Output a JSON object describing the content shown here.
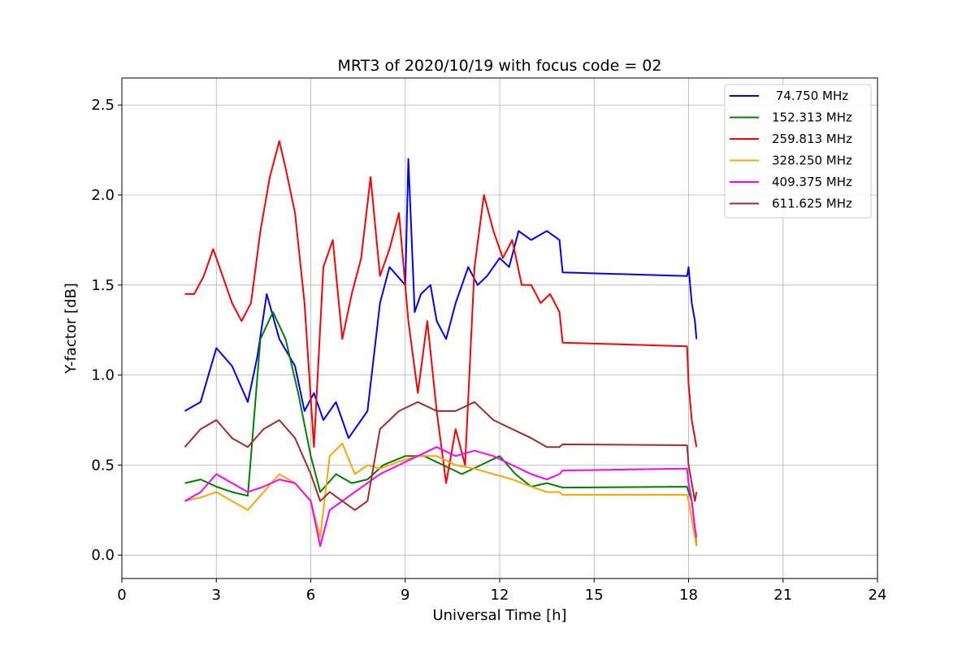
{
  "chart_data": {
    "type": "line",
    "title": "MRT3 of 2020/10/19 with focus code = 02",
    "xlabel": "Universal Time [h]",
    "ylabel": "Y-factor [dB]",
    "xlim": [
      0,
      24
    ],
    "ylim": [
      -0.13,
      2.65
    ],
    "xticks": [
      0,
      3,
      6,
      9,
      12,
      15,
      18,
      21,
      24
    ],
    "yticks": [
      0.0,
      0.5,
      1.0,
      1.5,
      2.0,
      2.5
    ],
    "xtick_labels": [
      "0",
      "3",
      "6",
      "9",
      "12",
      "15",
      "18",
      "21",
      "24"
    ],
    "ytick_labels": [
      "0.0",
      "0.5",
      "1.0",
      "1.5",
      "2.0",
      "2.5"
    ],
    "grid": true,
    "legend_position": "top-right",
    "series": [
      {
        "name": " 74.750 MHz",
        "color": "#0000ff",
        "x": [
          2.0,
          2.5,
          3.0,
          3.5,
          4.0,
          4.3,
          4.6,
          5.0,
          5.5,
          5.8,
          6.1,
          6.4,
          6.8,
          7.2,
          7.8,
          8.2,
          8.5,
          9.0,
          9.1,
          9.3,
          9.5,
          9.8,
          10.0,
          10.3,
          10.6,
          11.0,
          11.3,
          11.6,
          12.0,
          12.3,
          12.6,
          13.0,
          13.5,
          13.9,
          14.0,
          17.95,
          18.0,
          18.1,
          18.2,
          18.25
        ],
        "y": [
          0.8,
          0.85,
          1.15,
          1.05,
          0.85,
          1.1,
          1.45,
          1.2,
          1.05,
          0.8,
          0.9,
          0.75,
          0.85,
          0.65,
          0.8,
          1.4,
          1.6,
          1.5,
          2.2,
          1.35,
          1.45,
          1.5,
          1.3,
          1.2,
          1.4,
          1.6,
          1.5,
          1.55,
          1.65,
          1.6,
          1.8,
          1.75,
          1.8,
          1.75,
          1.57,
          1.55,
          1.6,
          1.4,
          1.3,
          1.2
        ]
      },
      {
        "name": "152.313 MHz",
        "color": "#008000",
        "x": [
          2.0,
          2.5,
          3.0,
          3.5,
          4.0,
          4.4,
          4.8,
          5.2,
          5.6,
          6.0,
          6.3,
          6.8,
          7.3,
          7.8,
          8.3,
          9.0,
          9.6,
          10.2,
          10.8,
          11.4,
          12.0,
          12.5,
          13.0,
          13.5,
          13.9,
          14.0,
          17.95,
          18.0,
          18.1,
          18.2,
          18.25
        ],
        "y": [
          0.4,
          0.42,
          0.38,
          0.35,
          0.33,
          1.2,
          1.35,
          1.2,
          0.9,
          0.55,
          0.35,
          0.45,
          0.4,
          0.42,
          0.5,
          0.55,
          0.55,
          0.5,
          0.45,
          0.5,
          0.55,
          0.45,
          0.38,
          0.4,
          0.38,
          0.375,
          0.38,
          0.35,
          0.3,
          0.15,
          0.05
        ]
      },
      {
        "name": "259.813 MHz",
        "color": "#ff0000",
        "x": [
          2.0,
          2.3,
          2.6,
          2.9,
          3.2,
          3.5,
          3.8,
          4.1,
          4.4,
          4.7,
          5.0,
          5.2,
          5.5,
          5.8,
          6.1,
          6.4,
          6.7,
          7.0,
          7.3,
          7.6,
          7.9,
          8.2,
          8.5,
          8.8,
          9.1,
          9.4,
          9.7,
          10.0,
          10.3,
          10.6,
          10.9,
          11.2,
          11.5,
          11.8,
          12.1,
          12.4,
          12.7,
          13.0,
          13.3,
          13.6,
          13.9,
          14.0,
          17.95,
          18.0,
          18.1,
          18.2,
          18.25
        ],
        "y": [
          1.45,
          1.45,
          1.55,
          1.7,
          1.55,
          1.4,
          1.3,
          1.4,
          1.8,
          2.1,
          2.3,
          2.15,
          1.9,
          1.4,
          0.6,
          1.6,
          1.75,
          1.2,
          1.45,
          1.65,
          2.1,
          1.55,
          1.7,
          1.9,
          1.3,
          0.9,
          1.3,
          0.8,
          0.4,
          0.7,
          0.5,
          1.6,
          2.0,
          1.8,
          1.65,
          1.75,
          1.5,
          1.5,
          1.4,
          1.45,
          1.35,
          1.18,
          1.16,
          0.95,
          0.75,
          0.65,
          0.6
        ]
      },
      {
        "name": "328.250 MHz",
        "color": "#ffa500",
        "x": [
          2.0,
          2.5,
          3.0,
          3.5,
          4.0,
          4.5,
          5.0,
          5.5,
          6.0,
          6.3,
          6.6,
          7.0,
          7.4,
          7.8,
          8.2,
          8.8,
          9.4,
          10.0,
          10.6,
          11.2,
          11.8,
          12.4,
          13.0,
          13.5,
          13.9,
          14.0,
          17.95,
          18.0,
          18.1,
          18.2,
          18.25
        ],
        "y": [
          0.3,
          0.32,
          0.35,
          0.3,
          0.25,
          0.35,
          0.45,
          0.4,
          0.3,
          0.1,
          0.55,
          0.62,
          0.45,
          0.5,
          0.48,
          0.52,
          0.55,
          0.55,
          0.5,
          0.48,
          0.45,
          0.42,
          0.38,
          0.35,
          0.35,
          0.335,
          0.335,
          0.3,
          0.2,
          0.1,
          0.05
        ]
      },
      {
        "name": "409.375 MHz",
        "color": "#ff00ff",
        "x": [
          2.0,
          2.5,
          3.0,
          3.5,
          4.0,
          4.5,
          5.0,
          5.5,
          6.0,
          6.3,
          6.6,
          7.0,
          7.4,
          7.8,
          8.2,
          8.8,
          9.4,
          10.0,
          10.6,
          11.2,
          11.8,
          12.4,
          13.0,
          13.5,
          13.9,
          14.0,
          17.95,
          18.0,
          18.1,
          18.2,
          18.25
        ],
        "y": [
          0.3,
          0.35,
          0.45,
          0.4,
          0.35,
          0.38,
          0.42,
          0.4,
          0.3,
          0.05,
          0.25,
          0.3,
          0.35,
          0.4,
          0.45,
          0.5,
          0.55,
          0.6,
          0.55,
          0.58,
          0.55,
          0.5,
          0.45,
          0.42,
          0.45,
          0.47,
          0.48,
          0.4,
          0.3,
          0.15,
          0.1
        ]
      },
      {
        "name": "611.625 MHz",
        "color": "#a52a2a",
        "x": [
          2.0,
          2.5,
          3.0,
          3.5,
          4.0,
          4.5,
          5.0,
          5.5,
          6.0,
          6.3,
          6.6,
          7.0,
          7.4,
          7.8,
          8.2,
          8.8,
          9.4,
          10.0,
          10.6,
          11.2,
          11.8,
          12.4,
          13.0,
          13.5,
          13.9,
          14.0,
          17.95,
          18.0,
          18.1,
          18.2,
          18.25
        ],
        "y": [
          0.6,
          0.7,
          0.75,
          0.65,
          0.6,
          0.7,
          0.75,
          0.65,
          0.45,
          0.3,
          0.35,
          0.3,
          0.25,
          0.3,
          0.7,
          0.8,
          0.85,
          0.8,
          0.8,
          0.85,
          0.75,
          0.7,
          0.65,
          0.6,
          0.6,
          0.615,
          0.61,
          0.5,
          0.4,
          0.3,
          0.35
        ]
      }
    ]
  }
}
